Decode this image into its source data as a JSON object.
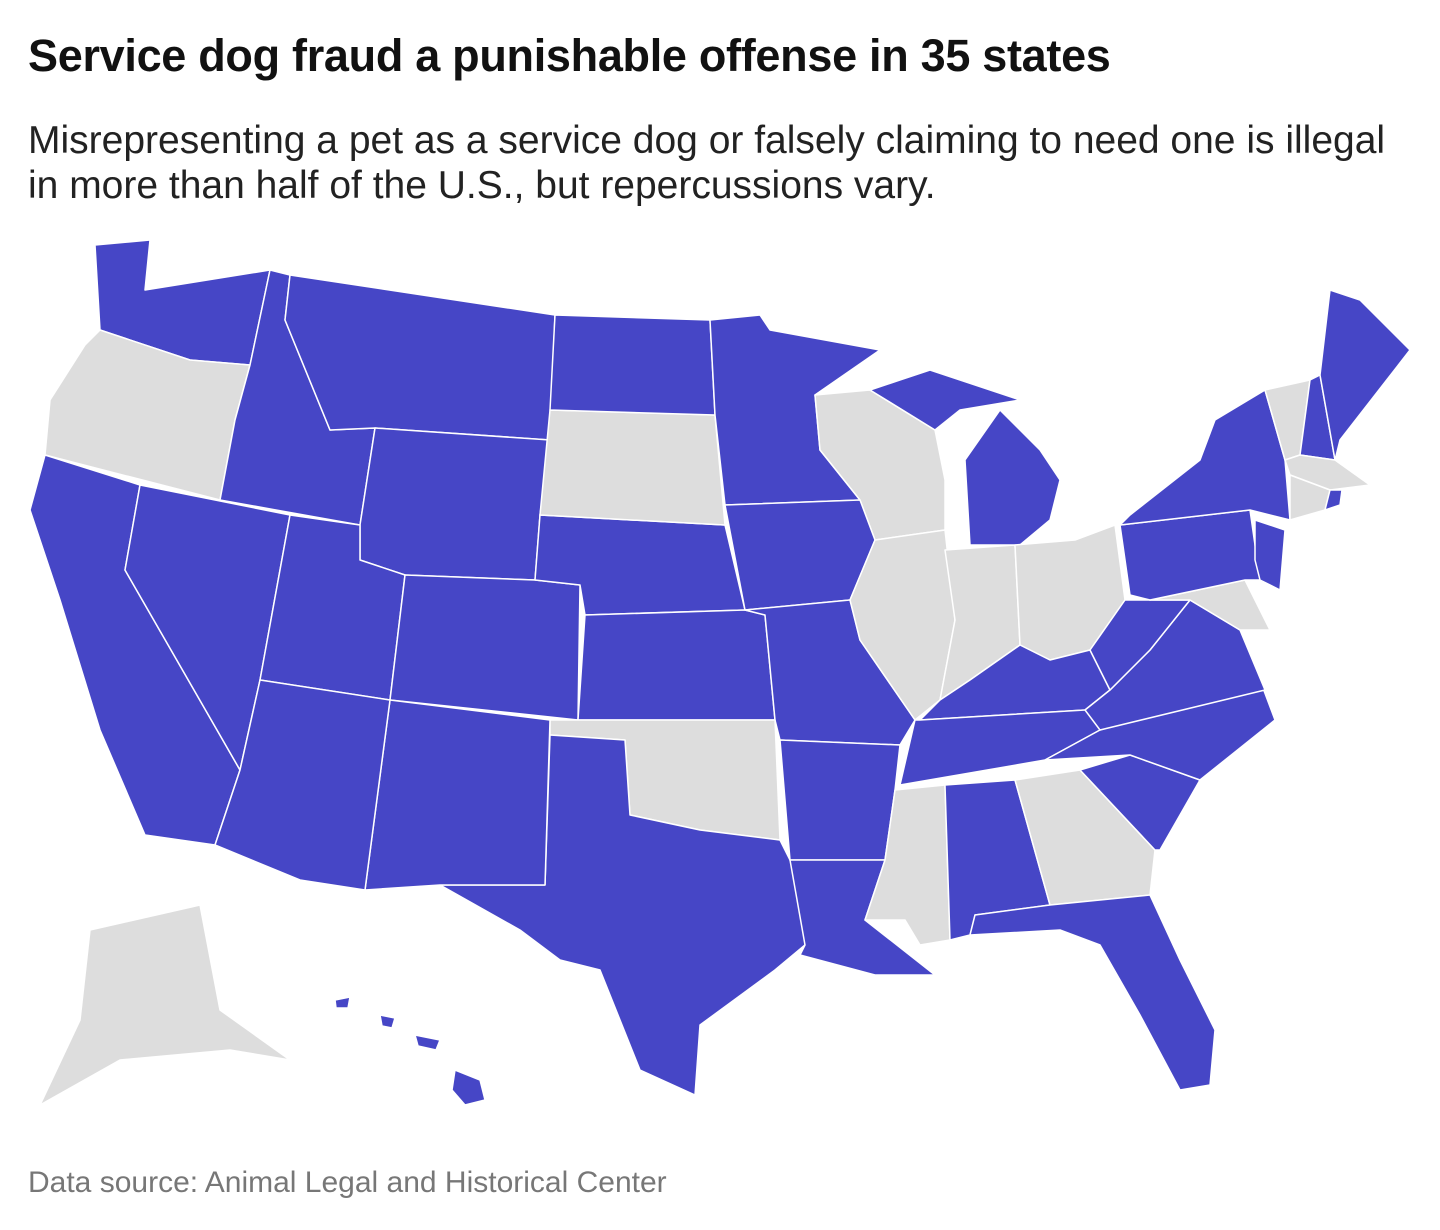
{
  "header": {
    "title": "Service dog fraud a punishable offense in 35 states",
    "subtitle": "Misrepresenting a pet as a service dog or falsely claiming to need one is illegal in more than half of the U.S., but repercussions vary."
  },
  "map": {
    "highlight_color": "#4646c6",
    "base_color": "#dddddd",
    "border_color": "#ffffff"
  },
  "footer": {
    "source": "Data source: Animal Legal and Historical Center"
  }
}
